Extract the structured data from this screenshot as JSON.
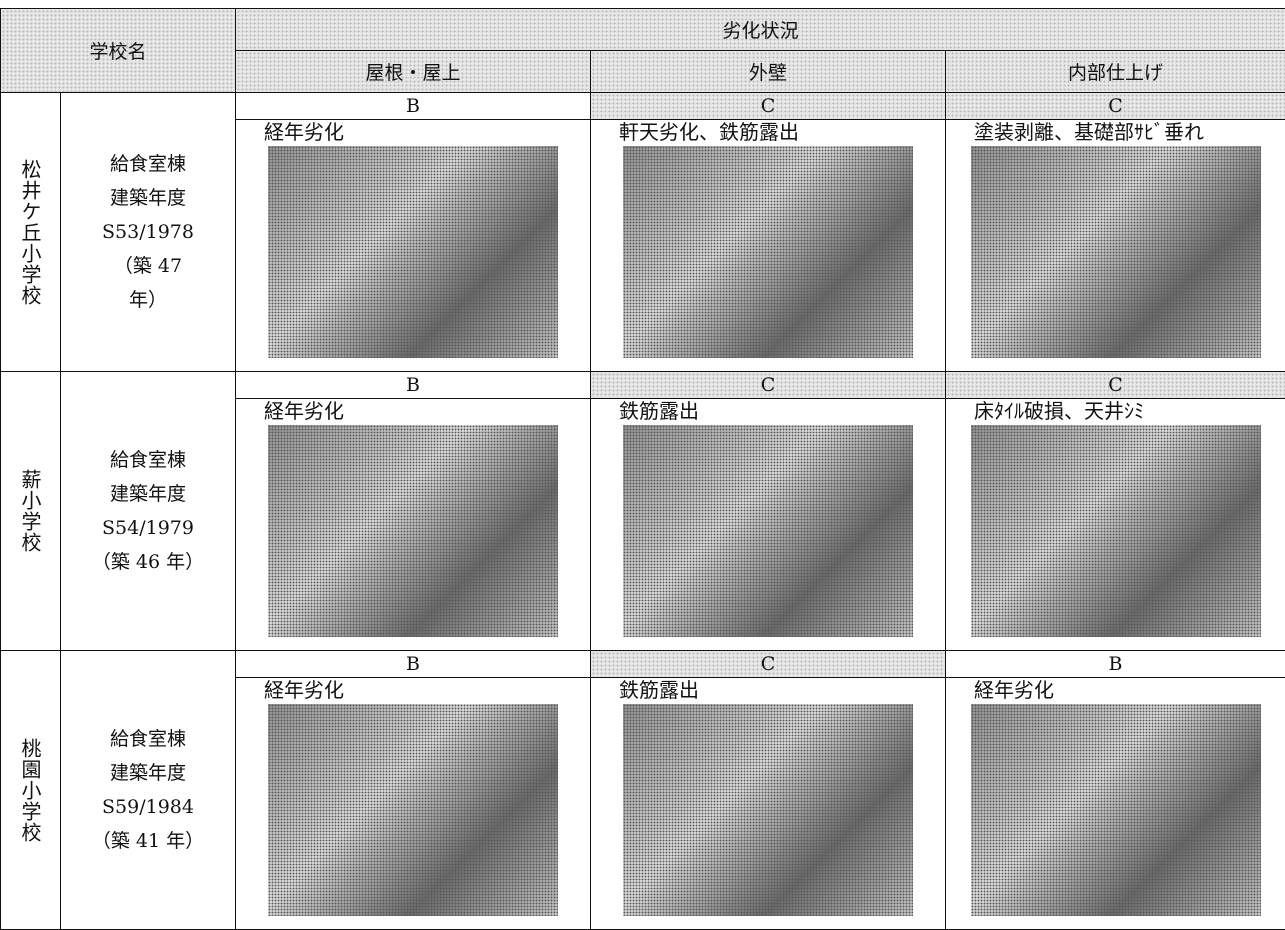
{
  "header": {
    "school_name": "学校名",
    "deterioration": "劣化状況",
    "columns": [
      "屋根・屋上",
      "外壁",
      "内部仕上げ"
    ]
  },
  "schools": [
    {
      "name": "松井ケ丘小学校",
      "building": [
        "給食室棟",
        "建築年度",
        "S53/1978",
        "（築 47",
        "年）"
      ],
      "items": [
        {
          "grade": "B",
          "note": "経年劣化"
        },
        {
          "grade": "C",
          "note": "軒天劣化、鉄筋露出"
        },
        {
          "grade": "C",
          "note": "塗装剥離、基礎部ｻﾋﾞ垂れ"
        }
      ]
    },
    {
      "name": "薪小学校",
      "building": [
        "給食室棟",
        "建築年度",
        "S54/1979",
        "（築 46 年）"
      ],
      "items": [
        {
          "grade": "B",
          "note": "経年劣化"
        },
        {
          "grade": "C",
          "note": "鉄筋露出"
        },
        {
          "grade": "C",
          "note": "床ﾀｲﾙ破損、天井ｼﾐ"
        }
      ]
    },
    {
      "name": "桃園小学校",
      "building": [
        "給食室棟",
        "建築年度",
        "S59/1984",
        "（築 41 年）"
      ],
      "items": [
        {
          "grade": "B",
          "note": "経年劣化"
        },
        {
          "grade": "C",
          "note": "鉄筋露出"
        },
        {
          "grade": "B",
          "note": "経年劣化"
        }
      ]
    }
  ]
}
